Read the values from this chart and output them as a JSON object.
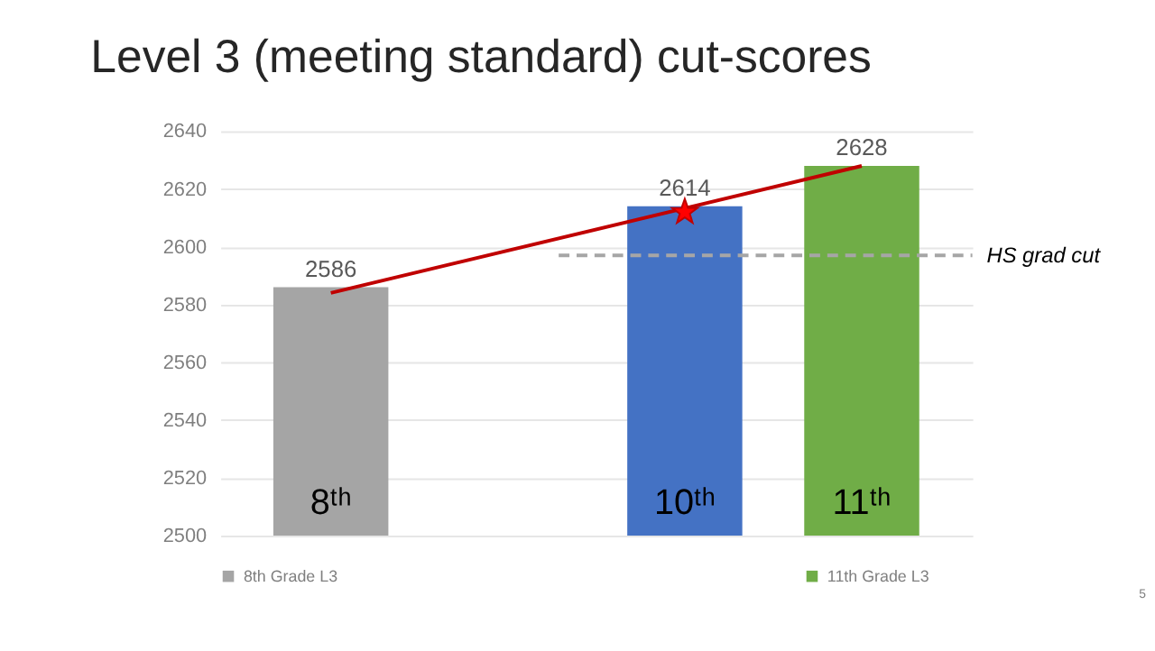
{
  "chart_data": {
    "type": "bar",
    "title": "Level 3 (meeting standard) cut-scores",
    "categories": [
      "8ᵗʰ",
      null,
      "10ᵗʰ",
      "11ᵗʰ"
    ],
    "series": [
      {
        "name": "8th Grade L3",
        "color": "#a5a5a5",
        "values": [
          2586,
          null,
          null,
          null
        ],
        "value_labels": [
          "2586",
          null,
          null,
          null
        ]
      },
      {
        "color": "#4472c4",
        "values": [
          null,
          null,
          2614,
          null
        ],
        "value_labels": [
          null,
          null,
          "2614",
          null
        ]
      },
      {
        "name": "11th Grade L3",
        "color": "#70ad47",
        "values": [
          null,
          null,
          null,
          2628
        ],
        "value_labels": [
          null,
          null,
          null,
          "2628"
        ]
      },
      {
        "type": "line",
        "color": "#c00000",
        "x": [
          "8ᵗʰ",
          "11ᵗʰ"
        ],
        "values": [
          2584,
          2628
        ],
        "line_style": "solid",
        "marker": "none"
      },
      {
        "type": "scatter",
        "color": "#ff0000",
        "x": [
          "10ᵗʰ"
        ],
        "values": [
          2612
        ],
        "marker": "star"
      }
    ],
    "ylim": [
      2500,
      2640
    ],
    "yticks": [
      2500,
      2520,
      2540,
      2560,
      2580,
      2600,
      2620,
      2640
    ],
    "grid": "y",
    "legend": "bottom",
    "ref_lines": [
      {
        "axis": "y",
        "value": 2597,
        "label": "HS grad cut",
        "color": "#a6a6a6",
        "line_style": "dashed"
      }
    ],
    "annotations": [
      "5"
    ]
  }
}
